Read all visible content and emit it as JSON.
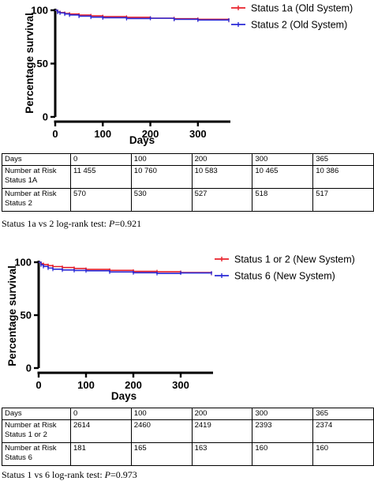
{
  "chart_data": [
    {
      "type": "line",
      "title": "",
      "xlabel": "Days",
      "ylabel": "Percentage survival",
      "xlim": [
        0,
        365
      ],
      "ylim": [
        0,
        100
      ],
      "xticks": [
        0,
        100,
        200,
        300
      ],
      "yticks": [
        0,
        50,
        100
      ],
      "legend_position": "top-right",
      "series": [
        {
          "name": "Status 1a (Old System)",
          "color": "#e8202a",
          "x": [
            0,
            5,
            10,
            20,
            30,
            50,
            75,
            100,
            150,
            200,
            250,
            300,
            365
          ],
          "y": [
            100,
            98.5,
            97.8,
            97,
            96.4,
            95.5,
            94.8,
            94,
            93.4,
            92.6,
            92.1,
            91.5,
            90.6
          ]
        },
        {
          "name": "Status 2 (Old System)",
          "color": "#2a2ad6",
          "x": [
            0,
            5,
            10,
            20,
            30,
            50,
            75,
            100,
            150,
            200,
            250,
            300,
            365
          ],
          "y": [
            100,
            98.2,
            97.5,
            96.5,
            95.6,
            94.5,
            93.6,
            93,
            92.3,
            92.5,
            91.5,
            90.9,
            90.7
          ]
        }
      ]
    },
    {
      "type": "line",
      "title": "",
      "xlabel": "Days",
      "ylabel": "Percentage survival",
      "xlim": [
        0,
        365
      ],
      "ylim": [
        0,
        100
      ],
      "xticks": [
        0,
        100,
        200,
        300
      ],
      "yticks": [
        0,
        50,
        100
      ],
      "legend_position": "top-right",
      "series": [
        {
          "name": "Status 1 or 2 (New System)",
          "color": "#e8202a",
          "x": [
            0,
            5,
            10,
            20,
            30,
            50,
            75,
            100,
            150,
            200,
            250,
            300,
            365
          ],
          "y": [
            100,
            98.6,
            97.8,
            96.8,
            95.9,
            95,
            94.1,
            93.2,
            92.3,
            91.4,
            91,
            90.3,
            89.5
          ]
        },
        {
          "name": "Status 6 (New System)",
          "color": "#2a2ad6",
          "x": [
            0,
            5,
            10,
            20,
            30,
            50,
            75,
            100,
            150,
            200,
            250,
            300,
            365
          ],
          "y": [
            100,
            97.5,
            96,
            94.5,
            93.4,
            92.7,
            92.2,
            91.9,
            90.8,
            90.1,
            89.4,
            89.9,
            89.7
          ]
        }
      ]
    }
  ],
  "tables": [
    {
      "header": [
        "Days",
        "0",
        "100",
        "200",
        "300",
        "365"
      ],
      "rows": [
        [
          "Number at Risk Status 1A",
          "11 455",
          "10 760",
          "10 583",
          "10 465",
          "10 386"
        ],
        [
          "Number at Risk Status 2",
          "570",
          "530",
          "527",
          "518",
          "517"
        ]
      ]
    },
    {
      "header": [
        "Days",
        "0",
        "100",
        "200",
        "300",
        "365"
      ],
      "rows": [
        [
          "Number at Risk Status 1 or 2",
          "2614",
          "2460",
          "2419",
          "2393",
          "2374"
        ],
        [
          "Number at Risk Status 6",
          "181",
          "165",
          "163",
          "160",
          "160"
        ]
      ]
    }
  ],
  "captions": [
    {
      "text": "Status 1a vs 2  log-rank test: ",
      "p_label": "P",
      "p_value": "=0.921"
    },
    {
      "text": "Status 1 vs 6 log-rank test: ",
      "p_label": "P",
      "p_value": "=0.973"
    }
  ]
}
